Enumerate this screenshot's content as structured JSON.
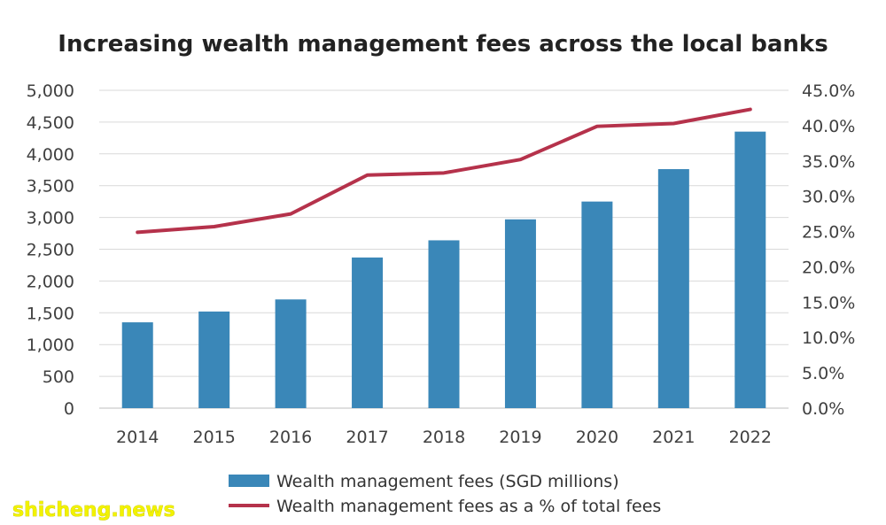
{
  "chart_data": {
    "type": "bar",
    "title": "Increasing wealth management fees across the local banks",
    "categories": [
      "2014",
      "2015",
      "2016",
      "2017",
      "2018",
      "2019",
      "2020",
      "2021",
      "2022"
    ],
    "series": [
      {
        "name": "Wealth management fees (SGD millions)",
        "type": "bar",
        "axis": "left",
        "color": "#3a87b8",
        "values": [
          1350,
          1520,
          1710,
          2370,
          2640,
          2970,
          3250,
          3760,
          4350
        ]
      },
      {
        "name": "Wealth management fees as a % of total fees",
        "type": "line",
        "axis": "right",
        "color": "#b5324b",
        "values": [
          24.9,
          25.7,
          27.5,
          33.0,
          33.3,
          35.2,
          39.9,
          40.3,
          42.3
        ]
      }
    ],
    "y_left": {
      "min": 0,
      "max": 5000,
      "ticks": [
        "0",
        "500",
        "1,000",
        "1,500",
        "2,000",
        "2,500",
        "3,000",
        "3,500",
        "4,000",
        "4,500",
        "5,000"
      ]
    },
    "y_right": {
      "min": 0,
      "max": 45,
      "ticks": [
        "0.0%",
        "5.0%",
        "10.0%",
        "15.0%",
        "20.0%",
        "25.0%",
        "30.0%",
        "35.0%",
        "40.0%",
        "45.0%"
      ]
    },
    "grid": true,
    "legend_position": "bottom"
  },
  "watermark": "shicheng.news"
}
